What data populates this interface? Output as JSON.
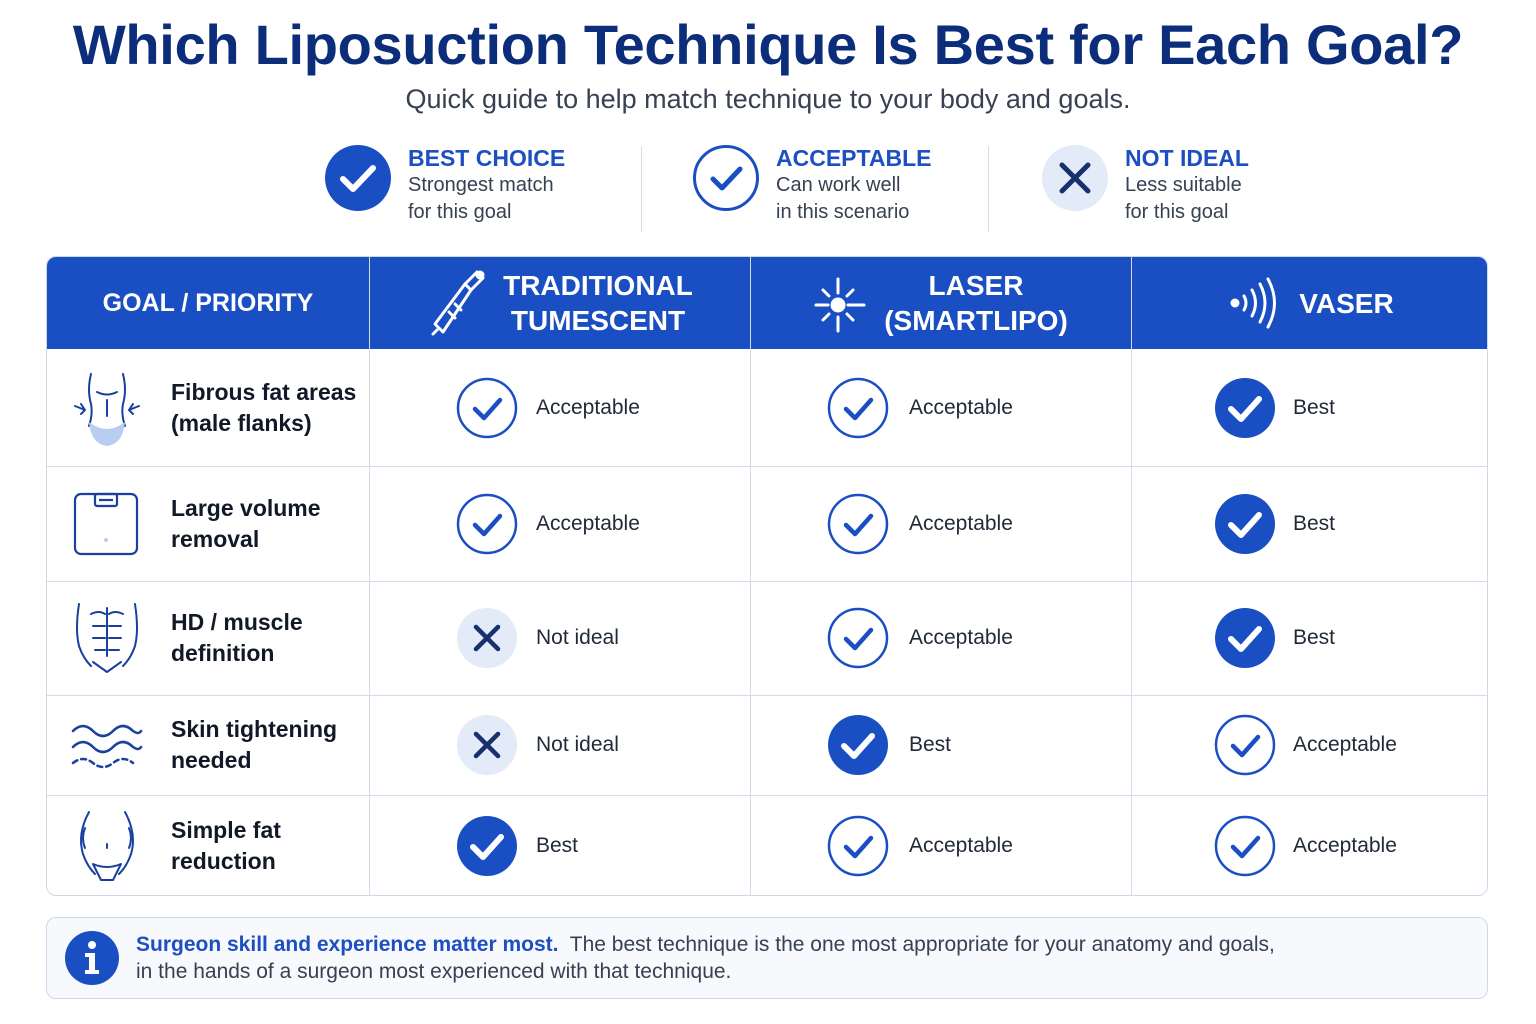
{
  "title": "Which Liposuction Technique Is Best for Each Goal?",
  "subtitle": "Quick guide to help match technique to your body and goals.",
  "colors": {
    "primary": "#1a4fc3",
    "dark_title": "#0b2d7a",
    "not_ideal_bg": "#e3ebf8"
  },
  "legend": [
    {
      "kind": "best",
      "icon": "filled-check-icon",
      "title": "BEST CHOICE",
      "line1": "Strongest match",
      "line2": "for this goal"
    },
    {
      "kind": "acceptable",
      "icon": "outline-check-icon",
      "title": "ACCEPTABLE",
      "line1": "Can work well",
      "line2": "in this scenario"
    },
    {
      "kind": "notideal",
      "icon": "x-icon",
      "title": "NOT IDEAL",
      "line1": "Less suitable",
      "line2": "for this goal"
    }
  ],
  "table": {
    "goal_header": "GOAL / PRIORITY",
    "columns": [
      {
        "icon": "cannula-icon",
        "line1": "TRADITIONAL",
        "line2": "TUMESCENT"
      },
      {
        "icon": "laser-icon",
        "line1": "LASER",
        "line2": "(SMARTLIPO)"
      },
      {
        "icon": "ultrasound-waves-icon",
        "line1": "VASER",
        "line2": ""
      }
    ],
    "rows": [
      {
        "icon": "male-torso-icon",
        "line1": "Fibrous fat areas",
        "line2": "(male flanks)",
        "ratings": [
          {
            "kind": "acceptable",
            "label": "Acceptable"
          },
          {
            "kind": "acceptable",
            "label": "Acceptable"
          },
          {
            "kind": "best",
            "label": "Best"
          }
        ]
      },
      {
        "icon": "scale-icon",
        "line1": "Large volume",
        "line2": "removal",
        "ratings": [
          {
            "kind": "acceptable",
            "label": "Acceptable"
          },
          {
            "kind": "acceptable",
            "label": "Acceptable"
          },
          {
            "kind": "best",
            "label": "Best"
          }
        ]
      },
      {
        "icon": "abs-icon",
        "line1": "HD / muscle",
        "line2": "definition",
        "ratings": [
          {
            "kind": "notideal",
            "label": "Not ideal"
          },
          {
            "kind": "acceptable",
            "label": "Acceptable"
          },
          {
            "kind": "best",
            "label": "Best"
          }
        ]
      },
      {
        "icon": "skin-waves-icon",
        "line1": "Skin tightening",
        "line2": "needed",
        "ratings": [
          {
            "kind": "notideal",
            "label": "Not ideal"
          },
          {
            "kind": "best",
            "label": "Best"
          },
          {
            "kind": "acceptable",
            "label": "Acceptable"
          }
        ]
      },
      {
        "icon": "waist-icon",
        "line1": "Simple fat",
        "line2": "reduction",
        "ratings": [
          {
            "kind": "best",
            "label": "Best"
          },
          {
            "kind": "acceptable",
            "label": "Acceptable"
          },
          {
            "kind": "acceptable",
            "label": "Acceptable"
          }
        ]
      }
    ]
  },
  "note": {
    "icon": "info-icon",
    "strong": "Surgeon skill and experience matter most.",
    "line1": "The best technique is the one most appropriate for your anatomy and goals,",
    "line2": "in the hands of a surgeon most experienced with that technique."
  }
}
